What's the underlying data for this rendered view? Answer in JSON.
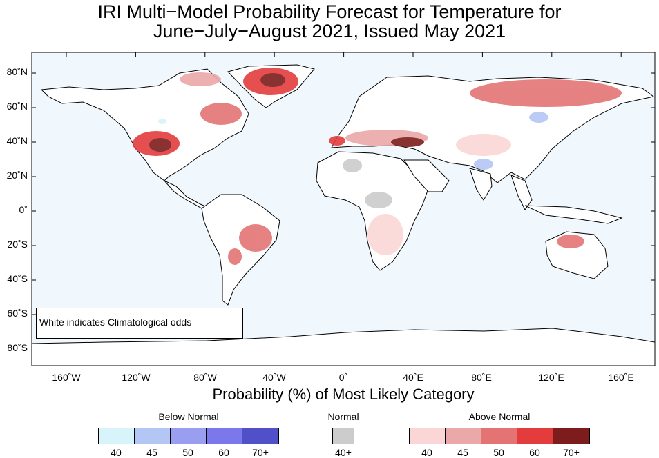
{
  "title_line1": "IRI Multi−Model Probability Forecast for Temperature for",
  "title_line2": "June−July−August 2021, Issued May 2021",
  "lat_labels": [
    "80˚N",
    "60˚N",
    "40˚N",
    "20˚N",
    "0˚",
    "20˚S",
    "40˚S",
    "60˚S",
    "80˚S"
  ],
  "lon_labels": [
    "160˚W",
    "120˚W",
    "80˚W",
    "40˚W",
    "0˚",
    "40˚E",
    "80˚E",
    "120˚E",
    "160˚E"
  ],
  "climatology_note": "White indicates Climatological odds",
  "legend": {
    "title": "Probability (%) of Most Likely Category",
    "below": {
      "label": "Below Normal",
      "ticks": [
        "40",
        "45",
        "50",
        "60",
        "70+"
      ],
      "colors": [
        "#d6f4fa",
        "#b4c6f4",
        "#9a9ef0",
        "#7a78ea",
        "#5050c8"
      ]
    },
    "normal": {
      "label": "Normal",
      "ticks": [
        "40+"
      ],
      "colors": [
        "#cccccc"
      ]
    },
    "above": {
      "label": "Above Normal",
      "ticks": [
        "40",
        "45",
        "50",
        "60",
        "70+"
      ],
      "colors": [
        "#fbd6d6",
        "#eaa8a8",
        "#e47474",
        "#e43c3c",
        "#7c1c1c"
      ]
    }
  },
  "colors": {
    "ocean": "#f0f8fe",
    "land": "#ffffff"
  }
}
